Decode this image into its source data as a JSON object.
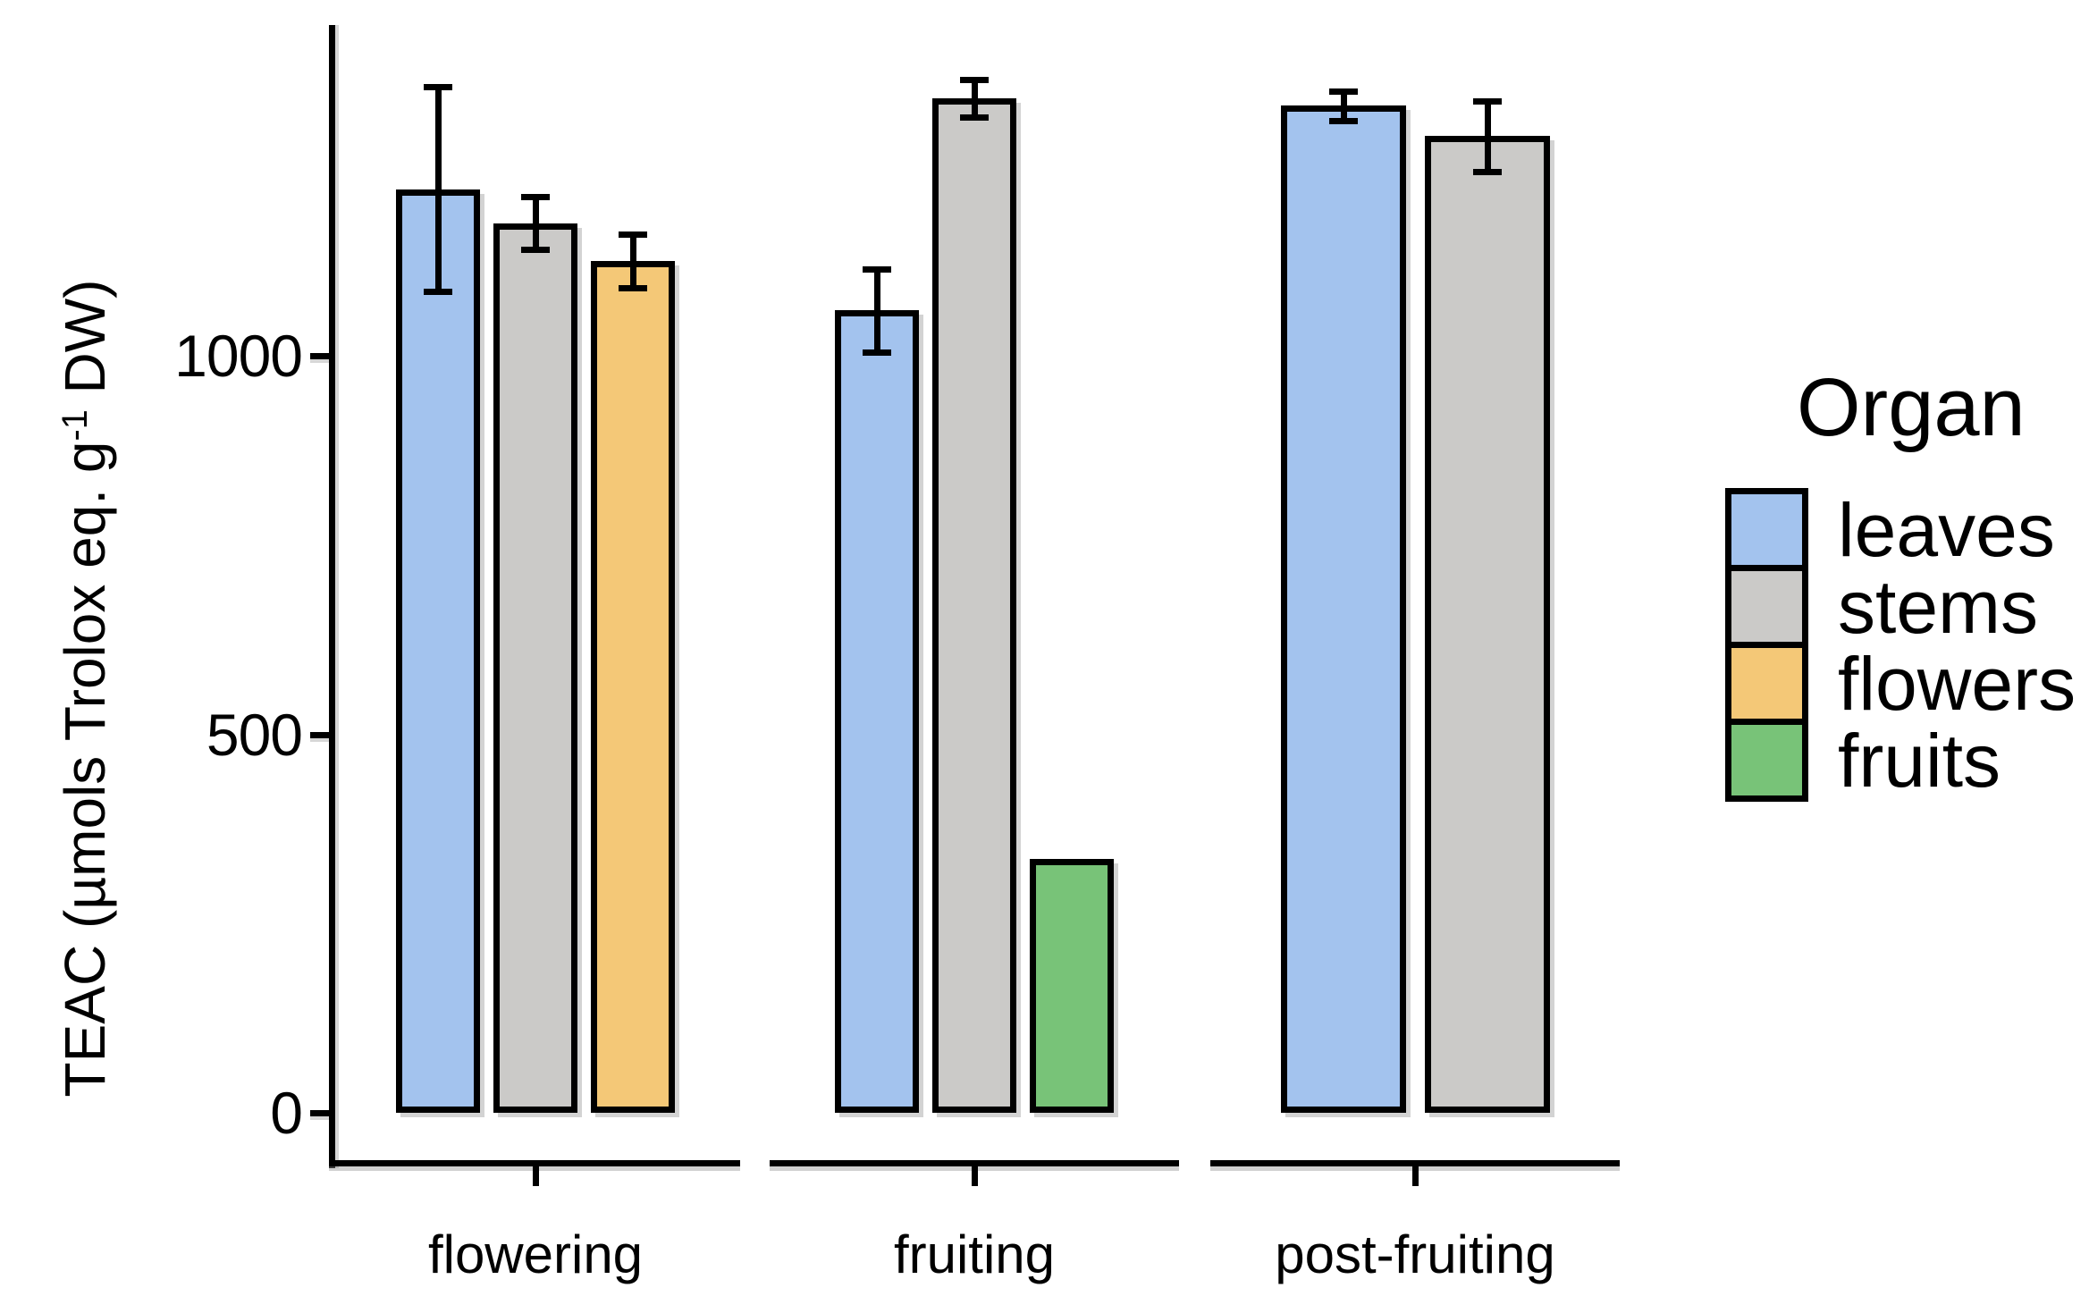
{
  "chart_data": {
    "type": "bar",
    "title": "",
    "xlabel": "",
    "ylabel": "TEAC (µmols Trolox eq. g⁻¹ DW)",
    "ylabel_parts": {
      "prefix": "TEAC (µmols Trolox eq. g",
      "sup": "-1",
      "suffix": " DW)"
    },
    "categories": [
      "flowering",
      "fruiting",
      "post-fruiting"
    ],
    "series": [
      {
        "name": "leaves",
        "color": "#A3C3EE",
        "values": [
          1220,
          1060,
          1330
        ],
        "errors": [
          135,
          55,
          20
        ]
      },
      {
        "name": "stems",
        "color": "#CBCAC8",
        "values": [
          1175,
          1340,
          1290
        ],
        "errors": [
          35,
          25,
          47
        ]
      },
      {
        "name": "flowers",
        "color": "#F4C877",
        "values": [
          1125,
          null,
          null
        ],
        "errors": [
          35,
          null,
          null
        ]
      },
      {
        "name": "fruits",
        "color": "#78C378",
        "values": [
          null,
          335,
          null
        ],
        "errors": [
          null,
          0,
          null
        ]
      }
    ],
    "yticks": [
      0,
      500,
      1000
    ],
    "ylim": [
      0,
      1435
    ],
    "grid": false,
    "error_bars": true,
    "bar_outline_color": "#000000",
    "axis_color": "#000000",
    "background_color": "#FFFFFF",
    "legend": {
      "title": "Organ",
      "position": "right",
      "entries": [
        "leaves",
        "stems",
        "flowers",
        "fruits"
      ]
    }
  }
}
